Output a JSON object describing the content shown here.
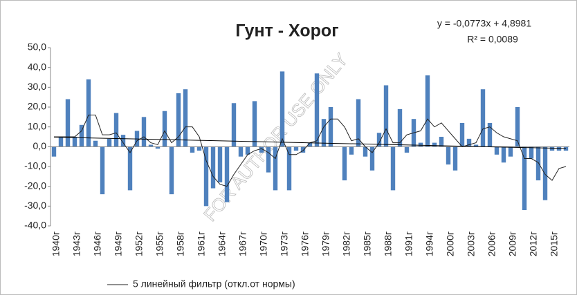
{
  "chart_data": {
    "type": "bar",
    "title": "Гунт - Хорог",
    "watermark": "FOR AUTHOR USE ONLY",
    "categories": [
      "1940г",
      null,
      null,
      "1943г",
      null,
      null,
      "1946г",
      null,
      null,
      "1949г",
      null,
      null,
      "1952г",
      null,
      null,
      "1955г",
      null,
      null,
      "1958г",
      null,
      null,
      "1961г",
      null,
      null,
      "1964г",
      null,
      null,
      "1967г",
      null,
      null,
      "1970г",
      null,
      null,
      "1973г",
      null,
      null,
      "1976г",
      null,
      null,
      "1979г",
      null,
      null,
      "1982г",
      null,
      null,
      "1985г",
      null,
      null,
      "1988г",
      null,
      null,
      "1991г",
      null,
      null,
      "1994г",
      null,
      null,
      "2000г",
      null,
      null,
      "2003г",
      null,
      null,
      "2006г",
      null,
      null,
      "2009г",
      null,
      null,
      "2012г",
      null,
      null,
      "2015г",
      null,
      null
    ],
    "values": [
      -5,
      5,
      24,
      5,
      11,
      34,
      3,
      -24,
      4,
      17,
      6,
      -22,
      8,
      15,
      1,
      -1,
      18,
      -24,
      27,
      29,
      -3,
      -2,
      -30,
      -21,
      -18,
      -28,
      22,
      -5,
      -4,
      23,
      -3,
      -13,
      -22,
      38,
      -22,
      -2,
      -3,
      2,
      37,
      14,
      20,
      0,
      -17,
      -4,
      24,
      -5,
      -12,
      7,
      31,
      -22,
      19,
      -3,
      14,
      2,
      36,
      2,
      5,
      -9,
      -12,
      12,
      4,
      1,
      29,
      12,
      -4,
      -8,
      -5,
      20,
      -32,
      -6,
      -17,
      -27,
      -2,
      -2,
      -2
    ],
    "color": "#4f81bd",
    "series": [
      {
        "name": "5 линейный фильтр (откл.от нормы)",
        "color": "#222222",
        "values": [
          5,
          5,
          5,
          5,
          8,
          16,
          16,
          6,
          6,
          7,
          2,
          -3,
          3,
          5,
          2,
          1,
          8,
          2,
          5,
          10,
          10,
          5,
          -7,
          -15,
          -19,
          -20,
          -14,
          -9,
          -4,
          -2,
          -1,
          -3,
          -6,
          4,
          -4,
          -4,
          -2,
          2,
          3,
          10,
          14,
          14,
          10,
          3,
          4,
          0,
          -3,
          2,
          9,
          2,
          2,
          6,
          7,
          8,
          14,
          10,
          12,
          8,
          4,
          0,
          1,
          2,
          9,
          10,
          7,
          5,
          4,
          3,
          -6,
          -6,
          -8,
          -14,
          -17,
          -11,
          -10
        ]
      }
    ],
    "trendline": {
      "slope": -0.0773,
      "intercept": 4.8981,
      "label": "y = -0,0773x + 4,8981",
      "r2_label": "R² = 0,0089"
    },
    "ylim": [
      -40,
      50
    ],
    "yticks": [
      {
        "value": -40,
        "label": "-40,0"
      },
      {
        "value": -30,
        "label": "-30,0"
      },
      {
        "value": -20,
        "label": "-20,0"
      },
      {
        "value": -10,
        "label": "-10,0"
      },
      {
        "value": 0,
        "label": "0,0"
      },
      {
        "value": 10,
        "label": "10,0"
      },
      {
        "value": 20,
        "label": "20,0"
      },
      {
        "value": 30,
        "label": "30,0"
      },
      {
        "value": 40,
        "label": "40,0"
      },
      {
        "value": 50,
        "label": "50,0"
      }
    ],
    "legend": "bottom"
  }
}
